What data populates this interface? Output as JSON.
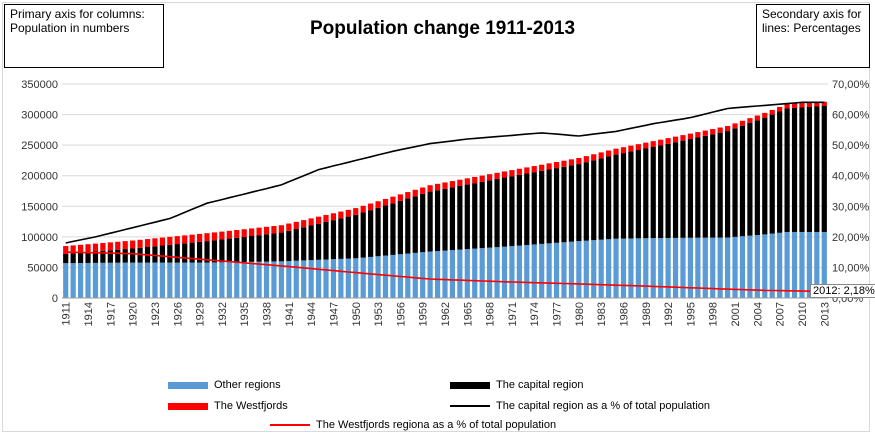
{
  "notes": {
    "left": "Primary axis for columns: Population in numbers",
    "right": "Secondary axis for lines: Percentages"
  },
  "callout": "2012: 2,18%",
  "colors": {
    "other": "#5b9bd5",
    "capital": "#000000",
    "westfjords": "#ff0000",
    "capital_line": "#000000",
    "westfjords_line": "#ff0000"
  },
  "chart_data": {
    "type": "bar",
    "stacked": true,
    "title": "Population change 1911-2013",
    "x_start": 1911,
    "x_end": 2013,
    "x_tick_labels": [
      "1911",
      "1914",
      "1917",
      "1920",
      "1923",
      "1926",
      "1929",
      "1932",
      "1935",
      "1938",
      "1941",
      "1944",
      "1947",
      "1950",
      "1953",
      "1956",
      "1959",
      "1962",
      "1965",
      "1968",
      "1971",
      "1974",
      "1977",
      "1980",
      "1983",
      "1986",
      "1989",
      "1992",
      "1995",
      "1998",
      "2001",
      "2004",
      "2007",
      "2010",
      "2013"
    ],
    "y_left": {
      "min": 0,
      "max": 350000,
      "ticks": [
        "0",
        "50000",
        "100000",
        "150000",
        "200000",
        "250000",
        "300000",
        "350000"
      ]
    },
    "y_right": {
      "min": 0,
      "max": 70,
      "ticks": [
        "0,00%",
        "10,00%",
        "20,00%",
        "30,00%",
        "40,00%",
        "50,00%",
        "60,00%",
        "70,00%"
      ]
    },
    "series_points": {
      "other": [
        [
          1911,
          57000
        ],
        [
          1920,
          58000
        ],
        [
          1930,
          58000
        ],
        [
          1940,
          60000
        ],
        [
          1950,
          65000
        ],
        [
          1960,
          76000
        ],
        [
          1970,
          84000
        ],
        [
          1980,
          93000
        ],
        [
          1985,
          97000
        ],
        [
          1990,
          98000
        ],
        [
          2000,
          99000
        ],
        [
          2005,
          104000
        ],
        [
          2008,
          108000
        ],
        [
          2013,
          108000
        ]
      ],
      "capital": [
        [
          1911,
          15000
        ],
        [
          1920,
          23000
        ],
        [
          1930,
          35000
        ],
        [
          1940,
          47000
        ],
        [
          1950,
          71000
        ],
        [
          1960,
          98000
        ],
        [
          1970,
          113000
        ],
        [
          1980,
          126000
        ],
        [
          1990,
          149000
        ],
        [
          2000,
          174000
        ],
        [
          2005,
          191000
        ],
        [
          2008,
          202000
        ],
        [
          2013,
          206000
        ]
      ],
      "westfjords": [
        [
          1911,
          13000
        ],
        [
          1920,
          13000
        ],
        [
          1930,
          13000
        ],
        [
          1940,
          12000
        ],
        [
          1950,
          11000
        ],
        [
          1960,
          10500
        ],
        [
          1970,
          10000
        ],
        [
          1980,
          10000
        ],
        [
          1990,
          9500
        ],
        [
          2000,
          8300
        ],
        [
          2005,
          7700
        ],
        [
          2008,
          7400
        ],
        [
          2013,
          7000
        ]
      ],
      "capital_pct": [
        [
          1911,
          18
        ],
        [
          1915,
          20
        ],
        [
          1920,
          23
        ],
        [
          1925,
          26
        ],
        [
          1930,
          31
        ],
        [
          1935,
          34
        ],
        [
          1940,
          37
        ],
        [
          1945,
          42
        ],
        [
          1950,
          45
        ],
        [
          1955,
          48
        ],
        [
          1960,
          50.5
        ],
        [
          1965,
          52
        ],
        [
          1970,
          53
        ],
        [
          1975,
          54
        ],
        [
          1980,
          53
        ],
        [
          1985,
          54.5
        ],
        [
          1990,
          57
        ],
        [
          1995,
          59
        ],
        [
          2000,
          62
        ],
        [
          2005,
          63
        ],
        [
          2010,
          64
        ],
        [
          2013,
          64
        ]
      ],
      "westfjords_pct": [
        [
          1911,
          15
        ],
        [
          1920,
          14.5
        ],
        [
          1930,
          12.5
        ],
        [
          1940,
          10.5
        ],
        [
          1950,
          8.3
        ],
        [
          1960,
          6.2
        ],
        [
          1970,
          5.3
        ],
        [
          1980,
          4.6
        ],
        [
          1990,
          3.8
        ],
        [
          2000,
          2.9
        ],
        [
          2005,
          2.5
        ],
        [
          2012,
          2.18
        ],
        [
          2013,
          2.15
        ]
      ]
    },
    "series": [
      {
        "name": "Other regions",
        "kind": "column"
      },
      {
        "name": "The capital region",
        "kind": "column"
      },
      {
        "name": "The Westfjords",
        "kind": "column"
      },
      {
        "name": "The capital region as a % of total population",
        "kind": "line"
      },
      {
        "name": "The Westfjords regiona as a % of total population",
        "kind": "line"
      }
    ],
    "legend_position": "bottom",
    "grid": true
  }
}
